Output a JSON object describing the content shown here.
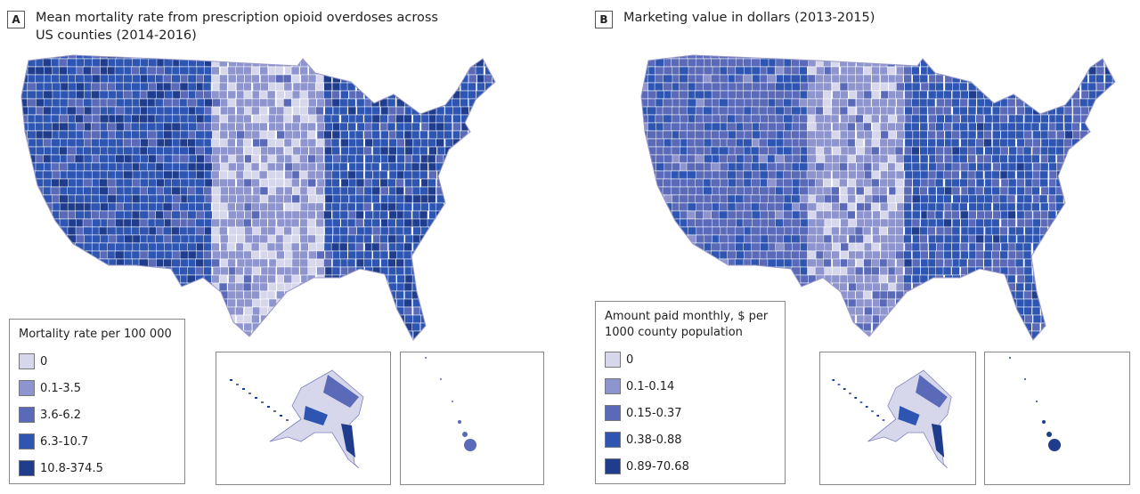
{
  "panels": [
    {
      "label": "A",
      "title_line1": "Mean mortality rate from prescription opioid overdoses across",
      "title_line2": "US counties (2014-2016)"
    },
    {
      "label": "B",
      "title_line1": "Marketing value in dollars (2013-2015)",
      "title_line2": ""
    }
  ],
  "chart_data": [
    {
      "type": "choropleth",
      "title": "Mean mortality rate from prescription opioid overdoses across US counties (2014-2016)",
      "legend_title": "Mortality rate per 100 000",
      "bins": [
        "0",
        "0.1-3.5",
        "3.6-6.2",
        "6.3-10.7",
        "10.8-374.5"
      ],
      "colors": [
        "#d7d7ec",
        "#8e94cd",
        "#5a6ab8",
        "#2d55b1",
        "#1f3d8c"
      ]
    },
    {
      "type": "choropleth",
      "title": "Marketing value in dollars (2013-2015)",
      "legend_title_line1": "Amount paid monthly, $ per",
      "legend_title_line2": "1000 county population",
      "bins": [
        "0",
        "0.1-0.14",
        "0.15-0.37",
        "0.38-0.88",
        "0.89-70.68"
      ],
      "colors": [
        "#d7d7ec",
        "#8e94cd",
        "#5a6ab8",
        "#2d55b1",
        "#1f3d8c"
      ]
    }
  ]
}
